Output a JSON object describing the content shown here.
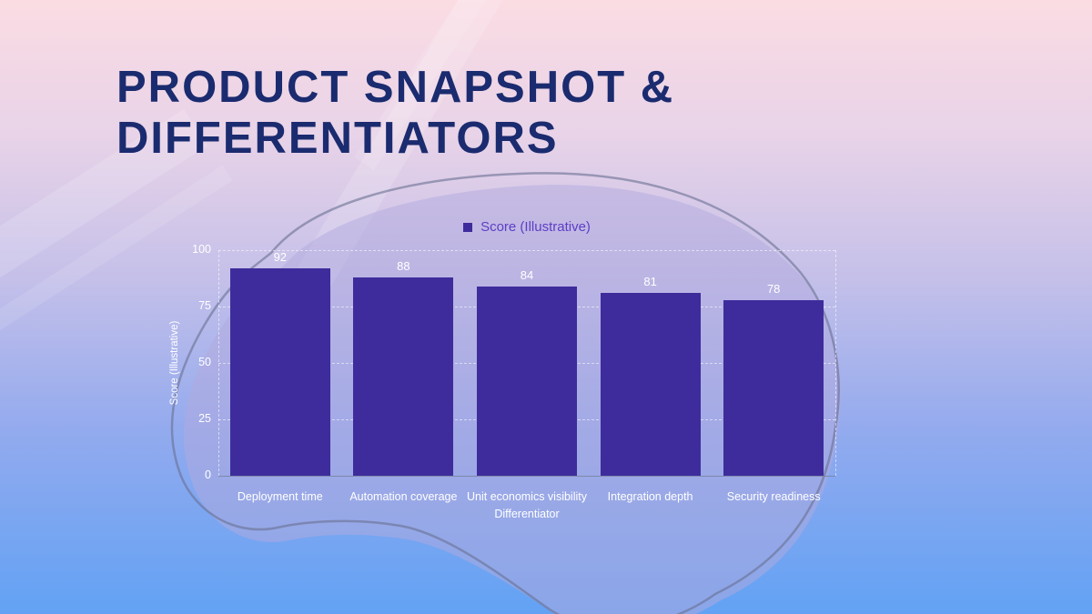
{
  "slide": {
    "title": "PRODUCT SNAPSHOT & DIFFERENTIATORS"
  },
  "colors": {
    "background_top": "#fbdce3",
    "background_bottom": "#62a2f4",
    "title_text": "#1b2b6f",
    "bar_fill": "#3e2c9c",
    "legend_text": "#5c3ec6",
    "axis_text": "#ffffff"
  },
  "chart_data": {
    "type": "bar",
    "title": "",
    "legend": [
      {
        "label": "Score (Illustrative)",
        "swatch_color": "#3e2c9c"
      }
    ],
    "legend_position": "top",
    "categories": [
      "Deployment time",
      "Automation coverage",
      "Unit economics visibility",
      "Integration depth",
      "Security readiness"
    ],
    "series": [
      {
        "name": "Score (Illustrative)",
        "values": [
          92,
          88,
          84,
          81,
          78
        ]
      }
    ],
    "data_labels": [
      "92",
      "88",
      "84",
      "81",
      "78"
    ],
    "xlabel": "Differentiator",
    "ylabel": "Score (Illustrative)",
    "ylim": [
      0,
      100
    ],
    "yticks": [
      0,
      25,
      50,
      75,
      100
    ],
    "grid": "horizontal dashed white, solid baseline, dashed vertical plot edges"
  }
}
